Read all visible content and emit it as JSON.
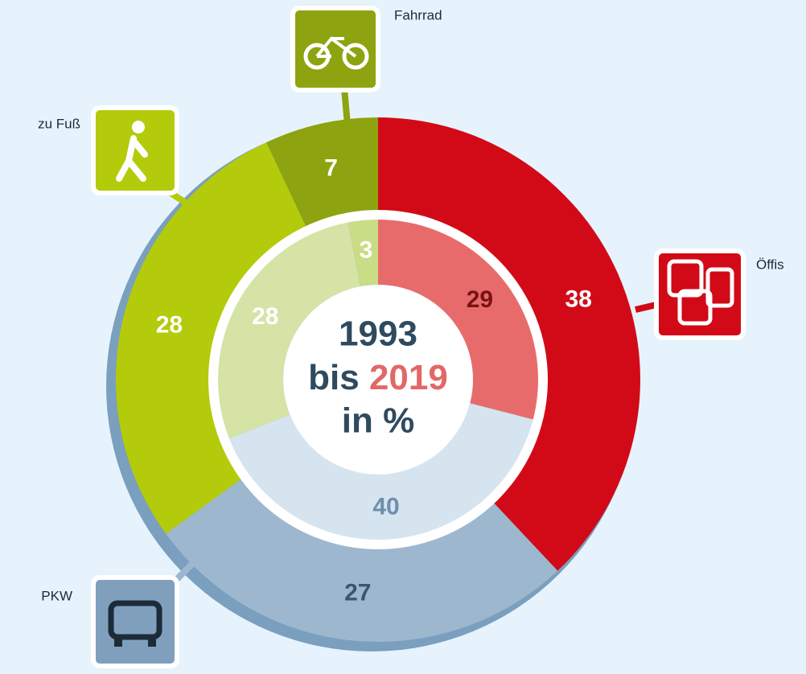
{
  "chart_data": {
    "type": "nested-donut",
    "categories": [
      "Öffis",
      "PKW",
      "zu Fuß",
      "Fahrrad"
    ],
    "series": [
      {
        "name": "1993",
        "values": [
          29,
          40,
          28,
          3
        ],
        "colors": [
          "#e86b6b",
          "#d5e4ef",
          "#d5e3a6",
          "#c9dc86"
        ],
        "label_colors": [
          "#7a1212",
          "#6d8fad",
          "#ffffff",
          "#ffffff"
        ]
      },
      {
        "name": "2019",
        "values": [
          38,
          27,
          28,
          7
        ],
        "colors": [
          "#d20a17",
          "#9db7cf",
          "#b3cb0b",
          "#8da30f"
        ],
        "label_colors": [
          "#ffffff",
          "#3e566c",
          "#ffffff",
          "#ffffff"
        ]
      }
    ],
    "connector": "bis",
    "unit_label": "in %"
  }
}
